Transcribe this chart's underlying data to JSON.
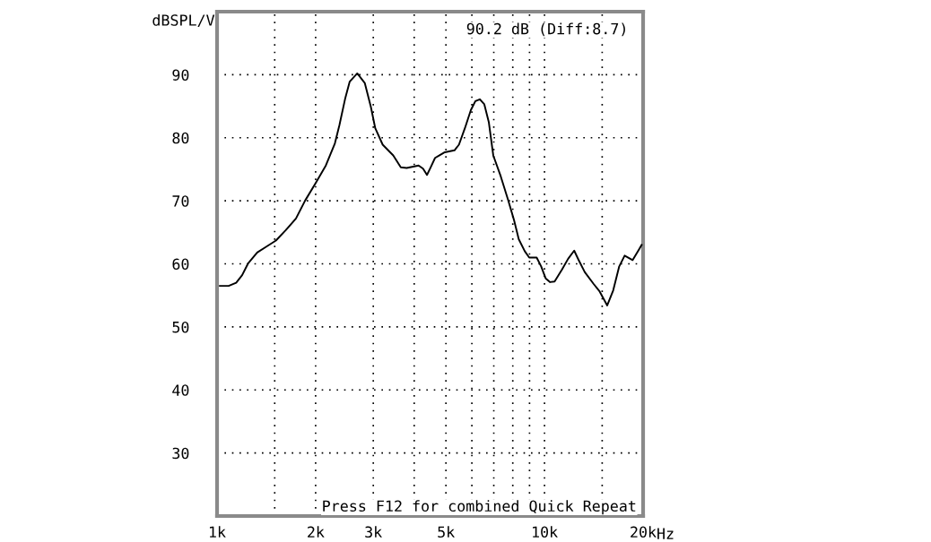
{
  "chart_data": {
    "type": "line",
    "ylabel": "dBSPL/V",
    "xlabel": "Hz",
    "annotations": [
      "90.2 dB (Diff:8.7)",
      "Press F12 for combined Quick Repeat"
    ],
    "x": [
      1020,
      1085,
      1144,
      1193,
      1245,
      1326,
      1412,
      1513,
      1619,
      1742,
      1856,
      2005,
      2149,
      2290,
      2364,
      2464,
      2542,
      2680,
      2825,
      2949,
      3042,
      3205,
      3452,
      3640,
      3794,
      4125,
      4257,
      4376,
      4490,
      4632,
      4779,
      4960,
      5310,
      5479,
      5712,
      5959,
      6150,
      6347,
      6549,
      6758,
      6974,
      7349,
      7746,
      8084,
      8343,
      8703,
      8981,
      9463,
      9766,
      10080,
      10401,
      10734,
      11313,
      11806,
      12320,
      12712,
      13266,
      14129,
      14740,
      15542,
      16212,
      16911,
      17567,
      18589,
      19394,
      19800
    ],
    "series": [
      {
        "color": "#000000",
        "values": [
          56.5,
          56.5,
          57.0,
          58.2,
          60.1,
          61.8,
          62.7,
          63.7,
          65.3,
          67.2,
          70.0,
          72.9,
          75.6,
          79.1,
          82.0,
          86.3,
          88.9,
          90.2,
          88.7,
          84.9,
          81.5,
          78.9,
          77.2,
          75.3,
          75.2,
          75.6,
          75.1,
          74.1,
          75.3,
          76.8,
          77.2,
          77.7,
          78.0,
          78.9,
          81.5,
          84.4,
          85.8,
          86.1,
          85.3,
          82.5,
          77.2,
          73.9,
          70.1,
          66.8,
          63.9,
          62.0,
          61.0,
          61.0,
          59.6,
          57.7,
          57.1,
          57.2,
          59.1,
          60.8,
          62.1,
          60.6,
          58.7,
          56.8,
          55.6,
          53.4,
          55.8,
          59.6,
          61.3,
          60.6,
          62.2,
          63.0
        ]
      }
    ],
    "log": "x",
    "xlim": [
      1000,
      20000
    ],
    "ylim": [
      20,
      100
    ],
    "xticks": [
      {
        "value": 1000,
        "label": "1k"
      },
      {
        "value": 1500,
        "label": null
      },
      {
        "value": 2000,
        "label": "2k"
      },
      {
        "value": 3000,
        "label": "3k"
      },
      {
        "value": 4000,
        "label": null
      },
      {
        "value": 5000,
        "label": "5k"
      },
      {
        "value": 6000,
        "label": null
      },
      {
        "value": 7000,
        "label": null
      },
      {
        "value": 8000,
        "label": null
      },
      {
        "value": 9000,
        "label": null
      },
      {
        "value": 10000,
        "label": "10k"
      },
      {
        "value": 15000,
        "label": null
      },
      {
        "value": 20000,
        "label": "20k"
      }
    ],
    "yticks": [
      30,
      40,
      50,
      60,
      70,
      80,
      90
    ],
    "grid": true,
    "line_style": "solid"
  }
}
